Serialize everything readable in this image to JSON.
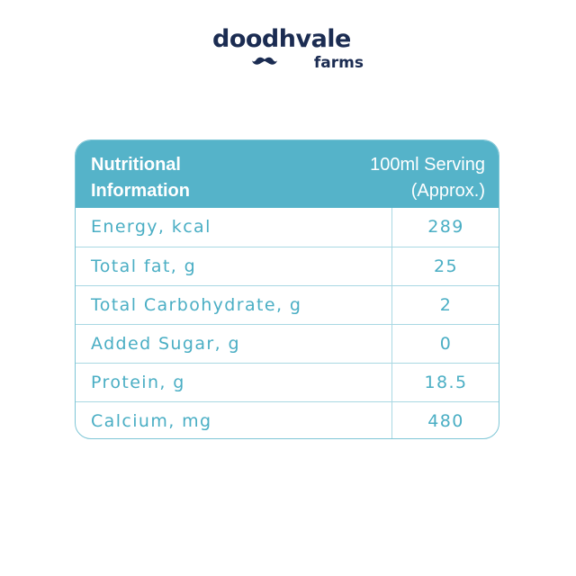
{
  "brand": {
    "name": "doodhvale",
    "sub": "farms",
    "icon": "mustache-icon",
    "color": "#1b2c52"
  },
  "nutrition": {
    "header_left": "Nutritional Information",
    "header_right_line1": "100ml Serving",
    "header_right_line2": "(Approx.)",
    "header_color": "#55b3c9",
    "text_color": "#4aaec4",
    "rows": [
      {
        "label": "Energy, kcal",
        "value": "289"
      },
      {
        "label": "Total fat, g",
        "value": "25"
      },
      {
        "label": "Total Carbohydrate, g",
        "value": "2"
      },
      {
        "label": "Added Sugar, g",
        "value": "0"
      },
      {
        "label": "Protein, g",
        "value": "18.5"
      },
      {
        "label": "Calcium, mg",
        "value": "480"
      }
    ]
  }
}
